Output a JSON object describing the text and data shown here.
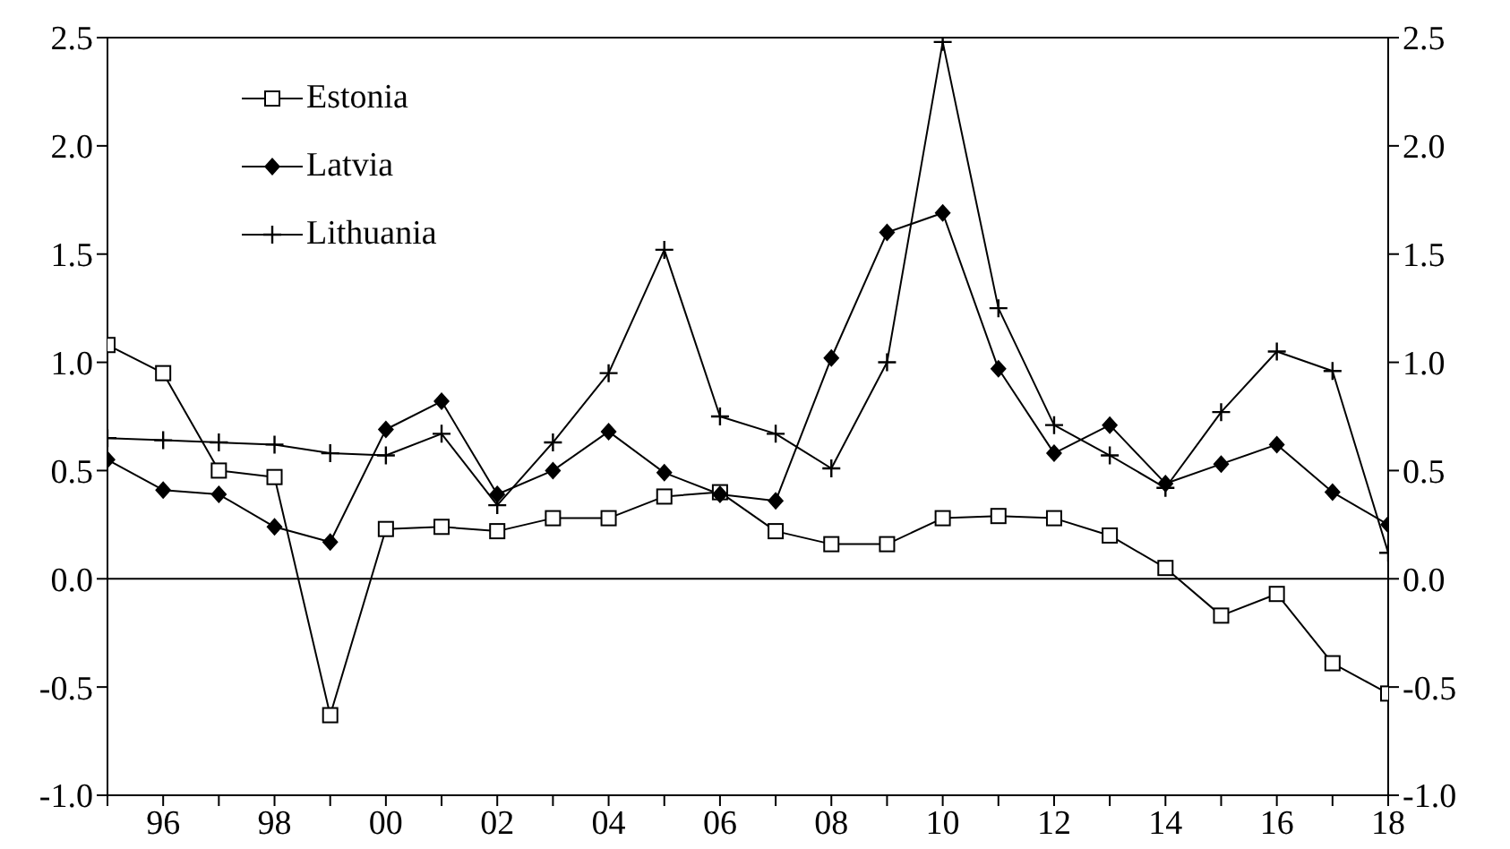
{
  "chart_data": {
    "type": "line",
    "x": [
      1995,
      1996,
      1997,
      1998,
      1999,
      2000,
      2001,
      2002,
      2003,
      2004,
      2005,
      2006,
      2007,
      2008,
      2009,
      2010,
      2011,
      2012,
      2013,
      2014,
      2015,
      2016,
      2017,
      2018
    ],
    "series": [
      {
        "name": "Estonia",
        "color": "#000000",
        "marker": "square",
        "values": [
          1.08,
          0.95,
          0.5,
          0.47,
          -0.63,
          0.23,
          0.24,
          0.22,
          0.28,
          0.28,
          0.38,
          0.4,
          0.22,
          0.16,
          0.16,
          0.28,
          0.29,
          0.28,
          0.2,
          0.05,
          -0.17,
          -0.07,
          -0.39,
          -0.53
        ]
      },
      {
        "name": "Latvia",
        "color": "#000000",
        "marker": "diamond",
        "values": [
          0.55,
          0.41,
          0.39,
          0.24,
          0.17,
          0.69,
          0.82,
          0.39,
          0.5,
          0.68,
          0.49,
          0.39,
          0.36,
          1.02,
          1.6,
          1.69,
          0.97,
          0.58,
          0.71,
          0.44,
          0.53,
          0.62,
          0.4,
          0.25
        ]
      },
      {
        "name": "Lithuania",
        "color": "#000000",
        "marker": "cross",
        "values": [
          0.65,
          0.64,
          0.63,
          0.62,
          0.58,
          0.57,
          0.67,
          0.34,
          0.63,
          0.95,
          1.52,
          0.75,
          0.67,
          0.51,
          1.0,
          2.48,
          1.25,
          0.71,
          0.57,
          0.42,
          0.77,
          1.05,
          0.96,
          0.12
        ]
      }
    ],
    "xlim": [
      1995,
      2018
    ],
    "xticks": [
      {
        "value": 1995,
        "label": null
      },
      {
        "value": 1996,
        "label": "96"
      },
      {
        "value": 1997,
        "label": null
      },
      {
        "value": 1998,
        "label": "98"
      },
      {
        "value": 1999,
        "label": null
      },
      {
        "value": 2000,
        "label": "00"
      },
      {
        "value": 2001,
        "label": null
      },
      {
        "value": 2002,
        "label": "02"
      },
      {
        "value": 2003,
        "label": null
      },
      {
        "value": 2004,
        "label": "04"
      },
      {
        "value": 2005,
        "label": null
      },
      {
        "value": 2006,
        "label": "06"
      },
      {
        "value": 2007,
        "label": null
      },
      {
        "value": 2008,
        "label": "08"
      },
      {
        "value": 2009,
        "label": null
      },
      {
        "value": 2010,
        "label": "10"
      },
      {
        "value": 2011,
        "label": null
      },
      {
        "value": 2012,
        "label": "12"
      },
      {
        "value": 2013,
        "label": null
      },
      {
        "value": 2014,
        "label": "14"
      },
      {
        "value": 2015,
        "label": null
      },
      {
        "value": 2016,
        "label": "16"
      },
      {
        "value": 2017,
        "label": null
      },
      {
        "value": 2018,
        "label": "18"
      }
    ],
    "ylim": [
      -1.0,
      2.5
    ],
    "yticks": [
      {
        "value": -1,
        "label": "-1.0"
      },
      {
        "value": -0.5,
        "label": "-0.5"
      },
      {
        "value": 0,
        "label": "0.0"
      },
      {
        "value": 0.5,
        "label": "0.5"
      },
      {
        "value": 1,
        "label": "1.0"
      },
      {
        "value": 1.5,
        "label": "1.5"
      },
      {
        "value": 2,
        "label": "2.0"
      },
      {
        "value": 2.5,
        "label": "2.5"
      }
    ],
    "y2lim": [
      -1.0,
      2.5
    ],
    "y2ticks": [
      {
        "value": -1,
        "label": "-1.0"
      },
      {
        "value": -0.5,
        "label": "-0.5"
      },
      {
        "value": 0,
        "label": "0.0"
      },
      {
        "value": 0.5,
        "label": "0.5"
      },
      {
        "value": 1,
        "label": "1.0"
      },
      {
        "value": 1.5,
        "label": "1.5"
      },
      {
        "value": 2,
        "label": "2.0"
      },
      {
        "value": 2.5,
        "label": "2.5"
      }
    ],
    "ref_lines": [
      {
        "axis": "y",
        "value": 0,
        "color": "#000000"
      }
    ],
    "grid": false,
    "legend": "top left",
    "line_style": "solid"
  }
}
